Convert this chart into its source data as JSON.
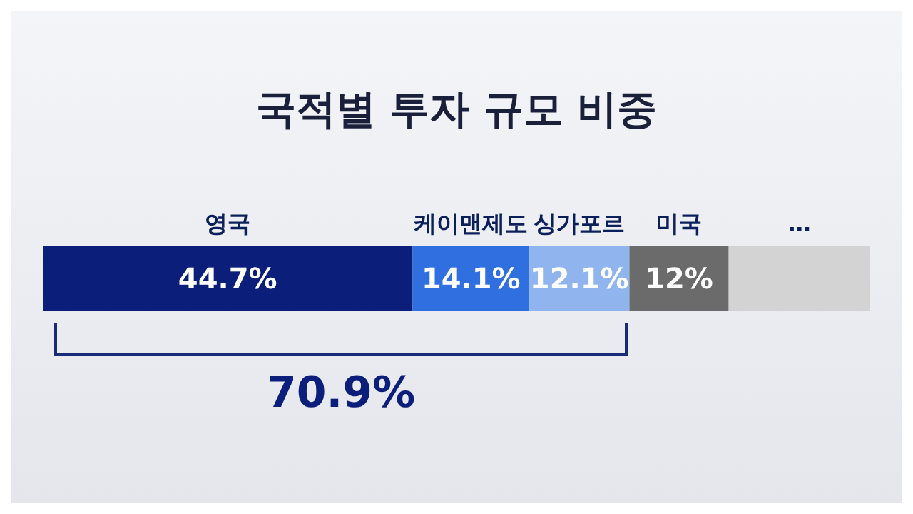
{
  "chart_data": {
    "type": "bar",
    "title": "국적별 투자 규모 비중",
    "orientation": "horizontal",
    "stacked": true,
    "categories": [
      null
    ],
    "xlim": [
      0,
      100
    ],
    "tick_labels": false,
    "series": [
      {
        "name": "영국",
        "color": "#0b1f7a",
        "values": [
          44.7
        ],
        "value_labels": [
          "44.7%"
        ]
      },
      {
        "name": "케이맨제도",
        "color": "#2f6fe0",
        "values": [
          14.1
        ],
        "value_labels": [
          "14.1%"
        ]
      },
      {
        "name": "싱가포르",
        "color": "#8fb4ee",
        "values": [
          12.1
        ],
        "value_labels": [
          "12.1%"
        ]
      },
      {
        "name": "미국",
        "color": "#6b6b6b",
        "values": [
          12
        ],
        "value_labels": [
          "12%"
        ]
      },
      {
        "name": "…",
        "color": "#d3d3d3",
        "values": [
          17.1
        ],
        "value_labels": [
          null
        ]
      }
    ],
    "annotations": [
      "70.9%"
    ]
  }
}
